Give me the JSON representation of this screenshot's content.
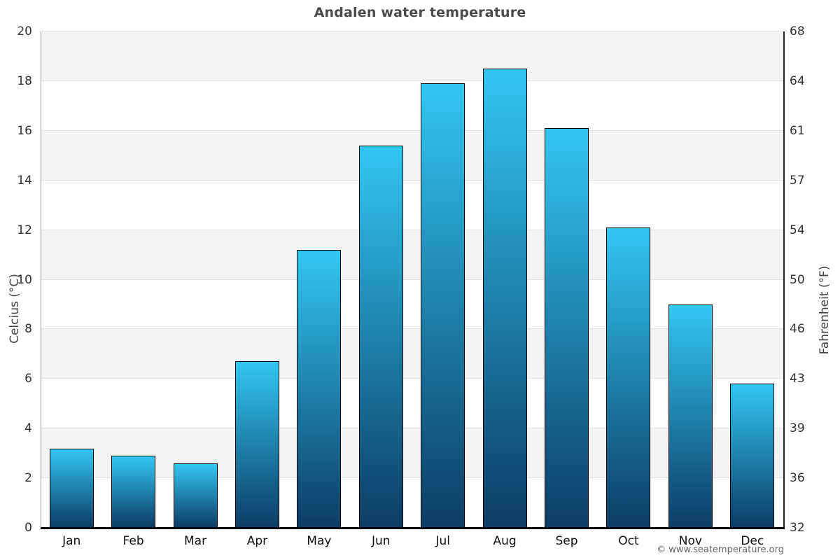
{
  "title": "Andalen water temperature",
  "watermark": "© www.seatemperature.org",
  "chart_data": {
    "type": "bar",
    "title": "Andalen water temperature",
    "categories": [
      "Jan",
      "Feb",
      "Mar",
      "Apr",
      "May",
      "Jun",
      "Jul",
      "Aug",
      "Sep",
      "Oct",
      "Nov",
      "Dec"
    ],
    "values": [
      3.2,
      2.9,
      2.6,
      6.7,
      11.2,
      15.4,
      17.9,
      18.5,
      16.1,
      12.1,
      9.0,
      5.8
    ],
    "xlabel": "",
    "ylabel_left": "Celcius (°C)",
    "ylabel_right": "Fahrenheit (°F)",
    "ylim": [
      0,
      20
    ],
    "y_ticks_celsius": [
      0,
      2,
      4,
      6,
      8,
      10,
      12,
      14,
      16,
      18,
      20
    ],
    "y_ticks_fahrenheit": [
      "32",
      "36",
      "39",
      "43",
      "46",
      "50",
      "54",
      "57",
      "61",
      "64",
      "68"
    ],
    "legend": "none",
    "grid": "alternating-horizontal-bands",
    "colors": {
      "bar_gradient_top": "#33c6f3",
      "bar_gradient_bottom": "#0b3d66",
      "bar_border": "#000000",
      "band_gray": "#f3f3f3",
      "gridline": "#e2e2e2",
      "x_axis_line": "#000000",
      "left_axis_line": "#9e9e9e",
      "right_axis_line": "#222222",
      "tick_text": "#333333",
      "axis_title_text": "#444444",
      "title_text": "#4a4a4a",
      "watermark_text": "#666666"
    }
  }
}
